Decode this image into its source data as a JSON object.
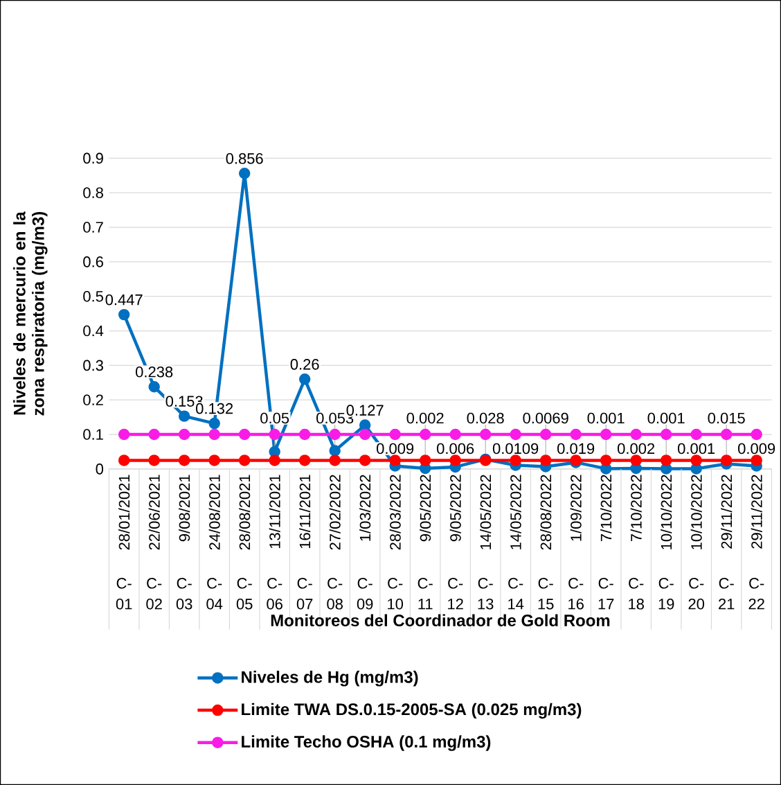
{
  "chart_data": {
    "type": "line",
    "xlabel": "Monitoreos del Coordinador de Gold Room",
    "ylabel": "Niveles de mercurio en la zona respiratoria (mg/m3)",
    "categories": [
      "28/01/2021",
      "22/06/2021",
      "9/08/2021",
      "24/08/2021",
      "28/08/2021",
      "13/11/2021",
      "16/11/2021",
      "27/02/2022",
      "1/03/2022",
      "28/03/2022",
      "9/05/2022",
      "9/05/2022",
      "14/05/2022",
      "14/05/2022",
      "28/08/2022",
      "1/09/2022",
      "7/10/2022",
      "7/10/2022",
      "10/10/2022",
      "10/10/2022",
      "29/11/2022",
      "29/11/2022"
    ],
    "annotations": [
      "C-01",
      "C-02",
      "C-03",
      "C-04",
      "C-05",
      "C-06",
      "C-07",
      "C-08",
      "C-09",
      "C-10",
      "C-11",
      "C-12",
      "C-13",
      "C-14",
      "C-15",
      "C-16",
      "C-17",
      "C-18",
      "C-19",
      "C-20",
      "C-21",
      "C-22"
    ],
    "series": [
      {
        "name": "Niveles de Hg (mg/m3)",
        "color": "#0070c0",
        "values": [
          0.447,
          0.238,
          0.153,
          0.132,
          0.856,
          0.05,
          0.26,
          0.053,
          0.127,
          0.009,
          0.002,
          0.006,
          0.028,
          0.0109,
          0.0069,
          0.019,
          0.001,
          0.002,
          0.001,
          0.001,
          0.015,
          0.009
        ],
        "value_labels": [
          "0.447",
          "0.238",
          "0.153",
          "0.132",
          "0.856",
          "0.05",
          "0.26",
          "0.053",
          "0.127",
          "0.009",
          "0.002",
          "0.006",
          "0.028",
          "0.0109",
          "0.0069",
          "0.019",
          "0.001",
          "0.002",
          "0.001",
          "0.001",
          "0.015",
          "0.009"
        ]
      },
      {
        "name": "Limite TWA DS.0.15-2005-SA (0.025 mg/m3)",
        "color": "#ff0000",
        "values": [
          0.025,
          0.025,
          0.025,
          0.025,
          0.025,
          0.025,
          0.025,
          0.025,
          0.025,
          0.025,
          0.025,
          0.025,
          0.025,
          0.025,
          0.025,
          0.025,
          0.025,
          0.025,
          0.025,
          0.025,
          0.025,
          0.025
        ]
      },
      {
        "name": "Limite Techo OSHA (0.1 mg/m3)",
        "color": "#f81ce6",
        "values": [
          0.1,
          0.1,
          0.1,
          0.1,
          0.1,
          0.1,
          0.1,
          0.1,
          0.1,
          0.1,
          0.1,
          0.1,
          0.1,
          0.1,
          0.1,
          0.1,
          0.1,
          0.1,
          0.1,
          0.1,
          0.1,
          0.1
        ]
      }
    ],
    "ylim": [
      0,
      0.9
    ],
    "yticks": [
      0,
      0.1,
      0.2,
      0.3,
      0.4,
      0.5,
      0.6,
      0.7,
      0.8,
      0.9
    ],
    "grid": "y",
    "legend": "bottom",
    "marker": "circle",
    "line_style": "solid"
  }
}
